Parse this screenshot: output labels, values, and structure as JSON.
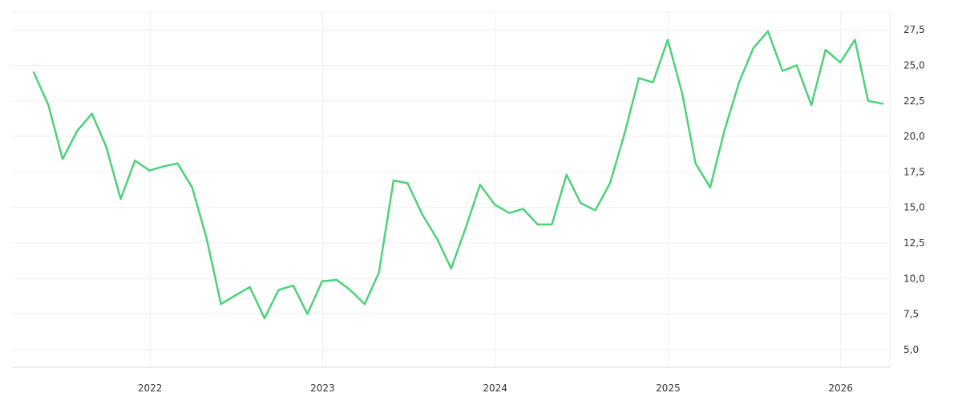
{
  "chart_data": {
    "type": "line",
    "title": "",
    "xlabel": "",
    "ylabel": "",
    "grid": true,
    "legend": "none",
    "y_axis_position": "right",
    "ylim": [
      3.75,
      28.75
    ],
    "y_ticks": [
      5.0,
      7.5,
      10.0,
      12.5,
      15.0,
      17.5,
      20.0,
      22.5,
      25.0,
      27.5
    ],
    "y_tick_labels": [
      "5,0",
      "7,5",
      "10,0",
      "12,5",
      "15,0",
      "17,5",
      "20,0",
      "22,5",
      "25,0",
      "27,5"
    ],
    "x_ticks": [
      "2022-01-01",
      "2023-01-01",
      "2024-01-01",
      "2025-01-01",
      "2026-01-01"
    ],
    "x_tick_labels": [
      "2022",
      "2023",
      "2024",
      "2025",
      "2026"
    ],
    "xlim": [
      "2021-03-15",
      "2026-04-15"
    ],
    "colors": {
      "line": "#4cd27a"
    },
    "series": [
      {
        "x": [
          "2021-04-30",
          "2021-05-31",
          "2021-06-30",
          "2021-07-31",
          "2021-08-31",
          "2021-09-30",
          "2021-10-31",
          "2021-11-30",
          "2021-12-31",
          "2022-01-31",
          "2022-02-28",
          "2022-03-31",
          "2022-04-30",
          "2022-05-31",
          "2022-06-30",
          "2022-07-31",
          "2022-08-31",
          "2022-09-30",
          "2022-10-31",
          "2022-11-30",
          "2022-12-31",
          "2023-01-31",
          "2023-02-28",
          "2023-03-31",
          "2023-04-30",
          "2023-05-31",
          "2023-06-30",
          "2023-07-31",
          "2023-08-31",
          "2023-09-30",
          "2023-10-31",
          "2023-11-30",
          "2023-12-31",
          "2024-01-31",
          "2024-02-29",
          "2024-03-31",
          "2024-04-30",
          "2024-05-31",
          "2024-06-30",
          "2024-07-31",
          "2024-08-31",
          "2024-09-30",
          "2024-10-31",
          "2024-11-30",
          "2024-12-31",
          "2025-01-31",
          "2025-02-28",
          "2025-03-31",
          "2025-04-30",
          "2025-05-31",
          "2025-06-30",
          "2025-07-31",
          "2025-08-31",
          "2025-09-30",
          "2025-10-31",
          "2025-11-30",
          "2025-12-31",
          "2026-01-31",
          "2026-02-28",
          "2026-03-31"
        ],
        "y": [
          24.5,
          22.2,
          18.4,
          20.4,
          21.6,
          19.3,
          15.6,
          18.3,
          17.6,
          17.9,
          18.1,
          16.4,
          12.9,
          8.2,
          8.8,
          9.4,
          7.2,
          9.2,
          9.5,
          7.5,
          9.8,
          9.9,
          9.2,
          8.2,
          10.4,
          16.9,
          16.7,
          14.5,
          12.8,
          10.7,
          13.6,
          16.6,
          15.2,
          14.6,
          14.9,
          13.8,
          13.8,
          17.3,
          15.3,
          14.8,
          16.7,
          20.1,
          24.1,
          23.8,
          26.8,
          23.0,
          18.1,
          16.4,
          20.4,
          23.8,
          26.2,
          27.4,
          24.6,
          25.0,
          22.2,
          26.1,
          25.2,
          26.8,
          22.5,
          22.3
        ]
      }
    ]
  }
}
